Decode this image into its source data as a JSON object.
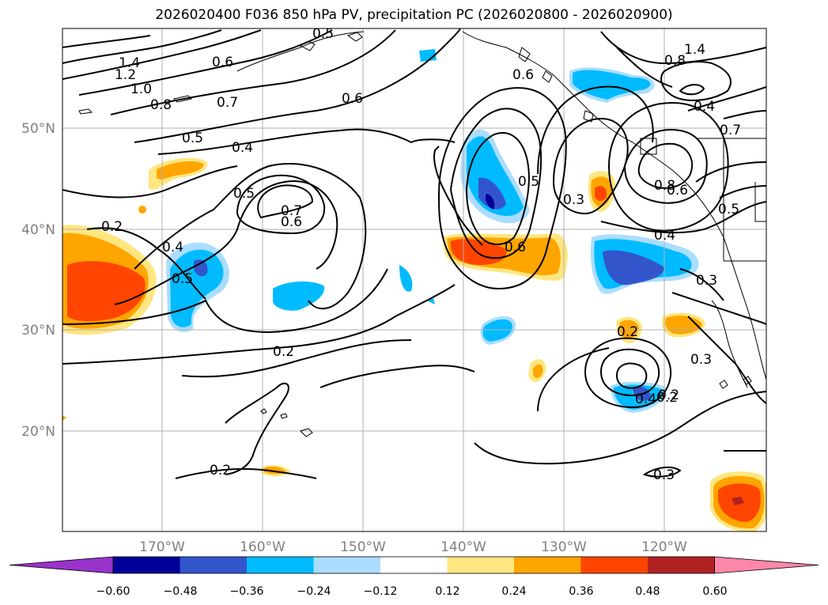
{
  "title": "2026020400 F036 850 hPa PV, precipitation PC (2026020800 - 2026020900)",
  "map": {
    "lat_ticks": [
      {
        "label": "50°N"
      },
      {
        "label": "40°N"
      },
      {
        "label": "30°N"
      },
      {
        "label": "20°N"
      }
    ],
    "lon_ticks": [
      {
        "label": "170°W"
      },
      {
        "label": "160°W"
      },
      {
        "label": "150°W"
      },
      {
        "label": "140°W"
      },
      {
        "label": "130°W"
      },
      {
        "label": "120°W"
      }
    ],
    "gridlines": true,
    "contour_labels": [
      "1.4",
      "1.2",
      "1.0",
      "0.8",
      "0.7",
      "0.6",
      "0.6",
      "0.5",
      "0.4",
      "0.5",
      "0.7",
      "0.6",
      "0.4",
      "0.5",
      "0.2",
      "0.2",
      "0.2",
      "0.2",
      "0.5",
      "0.6",
      "0.3",
      "0.8",
      "0.6",
      "0.4",
      "0.5",
      "0.3",
      "0.2",
      "0.3",
      "0.4",
      "0.2",
      "0.3",
      "1.4",
      "0.8",
      "0.4",
      "0.7",
      "0.6",
      "0.5"
    ]
  },
  "colorbar": {
    "ticks": [
      "−0.60",
      "−0.48",
      "−0.36",
      "−0.24",
      "−0.12",
      "0.12",
      "0.24",
      "0.36",
      "0.48",
      "0.60"
    ],
    "colors": [
      "#9933cc",
      "#000099",
      "#3355cc",
      "#00bbff",
      "#aaddff",
      "#ffffff",
      "#ffe680",
      "#ffa500",
      "#ff4500",
      "#b22222",
      "#ff88aa"
    ]
  },
  "colors": {
    "light_blue": "#aaddff",
    "blue": "#00bbff",
    "mid_blue": "#3355cc",
    "navy": "#000099",
    "yellow": "#ffe680",
    "orange": "#ffa500",
    "red_orange": "#ff4500",
    "firebrick": "#b22222"
  }
}
